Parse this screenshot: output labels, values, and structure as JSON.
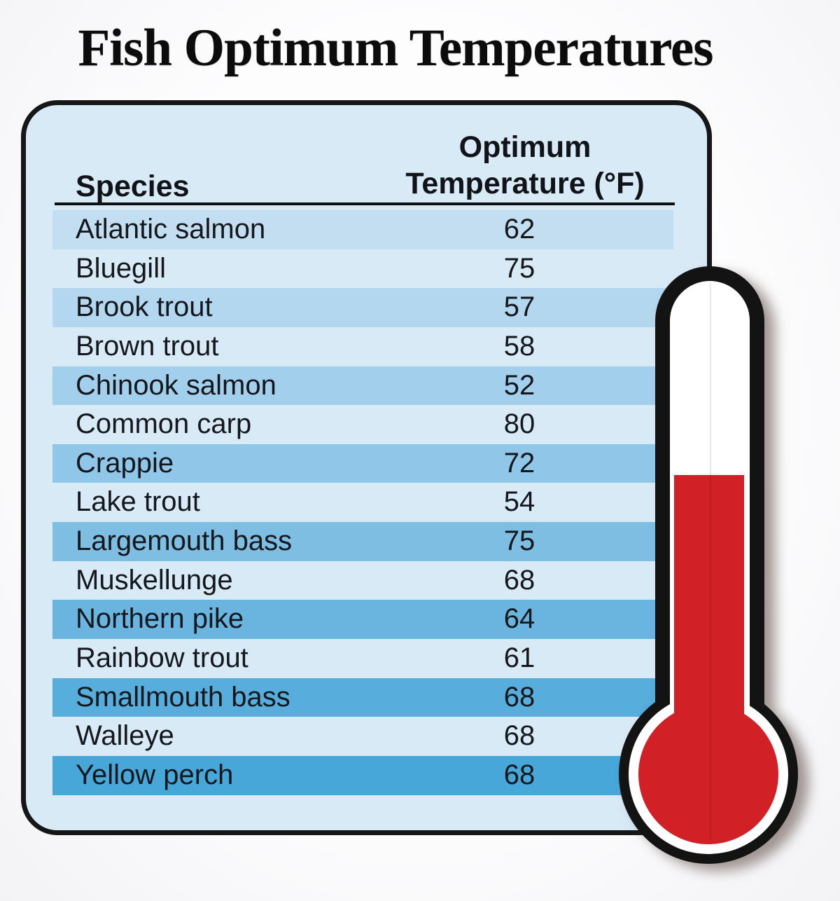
{
  "page": {
    "title": "Fish Optimum Temperatures"
  },
  "table": {
    "headers": {
      "species": "Species",
      "temperature_line1": "Optimum",
      "temperature_line2": "Temperature (°F)"
    },
    "rows": [
      {
        "species": "Atlantic salmon",
        "temp": "62",
        "stripe": "#c3def1"
      },
      {
        "species": "Bluegill",
        "temp": "75",
        "stripe": ""
      },
      {
        "species": "Brook trout",
        "temp": "57",
        "stripe": "#b3d7ee"
      },
      {
        "species": "Brown trout",
        "temp": "58",
        "stripe": ""
      },
      {
        "species": "Chinook salmon",
        "temp": "52",
        "stripe": "#a2cfeb"
      },
      {
        "species": "Common carp",
        "temp": "80",
        "stripe": ""
      },
      {
        "species": "Crappie",
        "temp": "72",
        "stripe": "#90c6e7"
      },
      {
        "species": "Lake trout",
        "temp": "54",
        "stripe": ""
      },
      {
        "species": "Largemouth bass",
        "temp": "75",
        "stripe": "#7ebee3"
      },
      {
        "species": "Muskellunge",
        "temp": "68",
        "stripe": ""
      },
      {
        "species": "Northern pike",
        "temp": "64",
        "stripe": "#6ab5e0"
      },
      {
        "species": "Rainbow trout",
        "temp": "61",
        "stripe": ""
      },
      {
        "species": "Smallmouth bass",
        "temp": "68",
        "stripe": "#57addc"
      },
      {
        "species": "Walleye",
        "temp": "68",
        "stripe": ""
      },
      {
        "species": "Yellow perch",
        "temp": "68",
        "stripe": "#47a7d9"
      }
    ]
  },
  "chart_data": {
    "type": "table",
    "title": "Fish Optimum Temperatures",
    "columns": [
      "Species",
      "Optimum Temperature (°F)"
    ],
    "categories": [
      "Atlantic salmon",
      "Bluegill",
      "Brook trout",
      "Brown trout",
      "Chinook salmon",
      "Common carp",
      "Crappie",
      "Lake trout",
      "Largemouth bass",
      "Muskellunge",
      "Northern pike",
      "Rainbow trout",
      "Smallmouth bass",
      "Walleye",
      "Yellow perch"
    ],
    "values": [
      62,
      75,
      57,
      58,
      52,
      80,
      72,
      54,
      75,
      68,
      64,
      61,
      68,
      68,
      68
    ]
  },
  "thermometer": {
    "icon": "thermometer-icon",
    "fill_state": "partially-filled"
  },
  "colors": {
    "panel_bg": "#d9eaf7",
    "panel_border": "#161616",
    "row_text": "#14181c",
    "underline": "#111111",
    "thermo_outline": "#131313",
    "thermo_white": "#ffffff",
    "thermo_red": "#d22027",
    "seam": "rgba(0,0,0,0.10)"
  }
}
